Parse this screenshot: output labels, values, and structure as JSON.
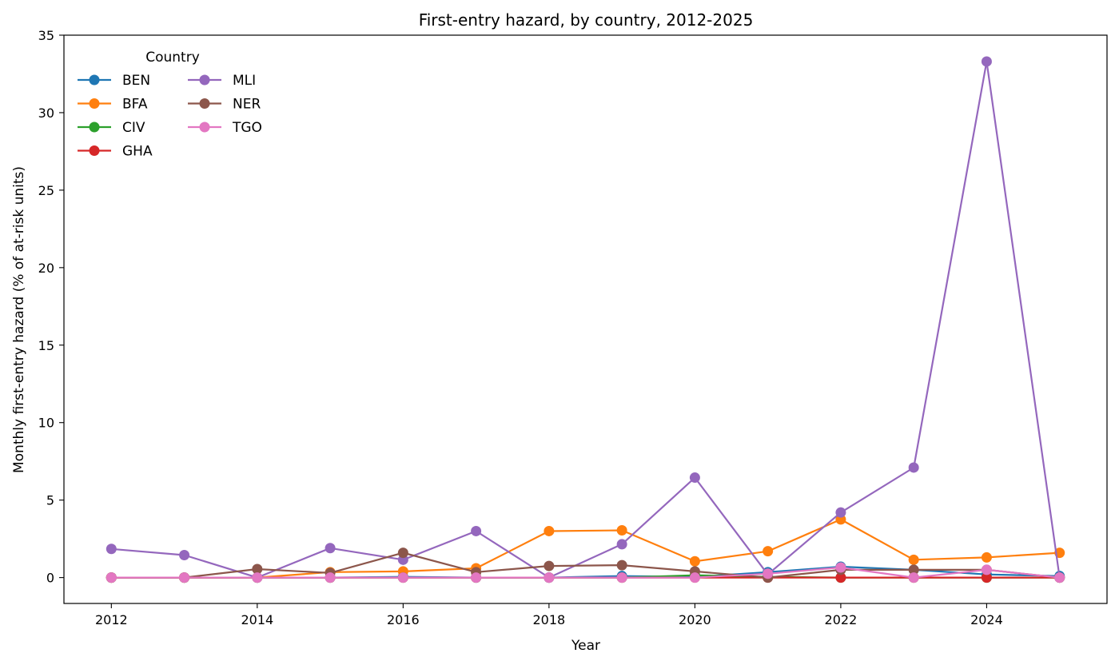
{
  "chart_data": {
    "type": "line",
    "title": "First-entry hazard, by country, 2012-2025",
    "xlabel": "Year",
    "ylabel": "Monthly first-entry hazard (% of at-risk units)",
    "x": [
      2012,
      2013,
      2014,
      2015,
      2016,
      2017,
      2018,
      2019,
      2020,
      2021,
      2022,
      2023,
      2024,
      2025
    ],
    "xlim": [
      2011.35,
      2025.65
    ],
    "ylim": [
      -1.67,
      35.0
    ],
    "xticks": [
      2012,
      2014,
      2016,
      2018,
      2020,
      2022,
      2024
    ],
    "yticks": [
      0,
      5,
      10,
      15,
      20,
      25,
      30,
      35
    ],
    "grid": false,
    "legend": {
      "title": "Country",
      "placement": "upper-left",
      "columns": 2
    },
    "series": [
      {
        "name": "BEN",
        "color": "#1f77b4",
        "values": [
          0,
          0,
          0,
          0,
          0.05,
          0,
          0,
          0.1,
          0.05,
          0.35,
          0.7,
          0.5,
          0.2,
          0.1
        ]
      },
      {
        "name": "BFA",
        "color": "#ff7f0e",
        "values": [
          0,
          0,
          0,
          0.35,
          0.4,
          0.6,
          3.0,
          3.05,
          1.05,
          1.7,
          3.75,
          1.15,
          1.3,
          1.6
        ]
      },
      {
        "name": "CIV",
        "color": "#2ca02c",
        "values": [
          0,
          0,
          0,
          0,
          0,
          0,
          0,
          0,
          0.15,
          0.05,
          0,
          0,
          0,
          0
        ]
      },
      {
        "name": "GHA",
        "color": "#d62728",
        "values": [
          0,
          0,
          0,
          0,
          0,
          0,
          0,
          0,
          0,
          0,
          0,
          0,
          0,
          0
        ]
      },
      {
        "name": "MLI",
        "color": "#9467bd",
        "values": [
          1.85,
          1.45,
          0,
          1.9,
          1.15,
          3.0,
          0,
          2.15,
          6.45,
          0.2,
          4.2,
          7.1,
          33.3,
          0
        ]
      },
      {
        "name": "NER",
        "color": "#8c564b",
        "values": [
          0,
          0,
          0.55,
          0.3,
          1.6,
          0.35,
          0.75,
          0.8,
          0.4,
          0,
          0.5,
          0.5,
          0.5,
          0
        ]
      },
      {
        "name": "TGO",
        "color": "#e377c2",
        "values": [
          0,
          0,
          0,
          0,
          0,
          0,
          0,
          0,
          0,
          0.25,
          0.65,
          0,
          0.5,
          0
        ]
      }
    ]
  }
}
